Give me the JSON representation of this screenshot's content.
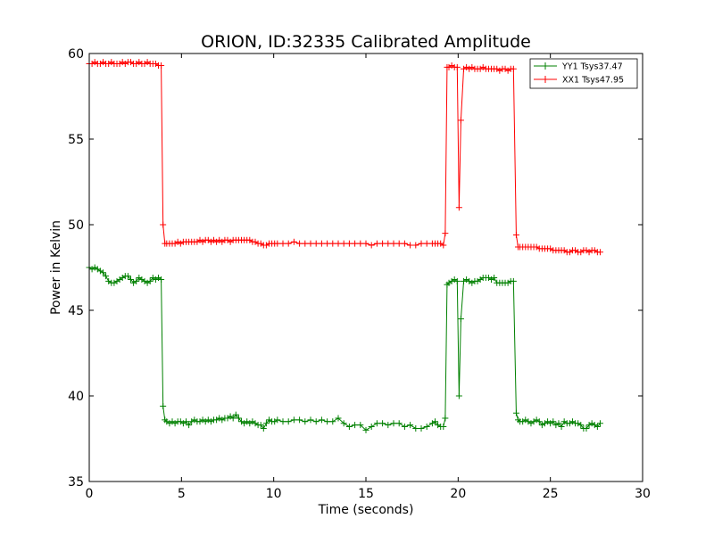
{
  "chart_data": {
    "type": "line",
    "title": "ORION, ID:32335 Calibrated Amplitude",
    "xlabel": "Time (seconds)",
    "ylabel": "Power in Kelvin",
    "xlim": [
      0,
      30
    ],
    "ylim": [
      35,
      60
    ],
    "xticks": [
      0,
      5,
      10,
      15,
      20,
      25,
      30
    ],
    "yticks": [
      35,
      40,
      45,
      50,
      55,
      60
    ],
    "grid": false,
    "legend_position": "upper-right",
    "marker": "+",
    "series": [
      {
        "name": "YY1 Tsys37.47",
        "color": "#008000",
        "x": [
          0,
          0.15,
          0.3,
          0.45,
          0.6,
          0.75,
          0.9,
          1.05,
          1.2,
          1.35,
          1.5,
          1.65,
          1.8,
          1.95,
          2.1,
          2.25,
          2.4,
          2.55,
          2.7,
          2.85,
          3.0,
          3.15,
          3.3,
          3.45,
          3.6,
          3.75,
          3.9,
          4.0,
          4.1,
          4.2,
          4.35,
          4.5,
          4.65,
          4.8,
          4.95,
          5.1,
          5.25,
          5.4,
          5.55,
          5.7,
          5.85,
          6.0,
          6.15,
          6.3,
          6.45,
          6.6,
          6.75,
          6.9,
          7.05,
          7.2,
          7.35,
          7.5,
          7.65,
          7.8,
          7.95,
          8.1,
          8.25,
          8.4,
          8.55,
          8.7,
          8.85,
          9.0,
          9.15,
          9.3,
          9.45,
          9.6,
          9.75,
          9.9,
          10.05,
          10.2,
          10.5,
          10.8,
          11.1,
          11.4,
          11.7,
          12.0,
          12.3,
          12.6,
          12.9,
          13.2,
          13.5,
          13.8,
          14.1,
          14.4,
          14.7,
          15.0,
          15.3,
          15.6,
          15.9,
          16.2,
          16.5,
          16.8,
          17.1,
          17.4,
          17.7,
          18.0,
          18.3,
          18.6,
          18.75,
          18.9,
          19.05,
          19.2,
          19.3,
          19.4,
          19.5,
          19.65,
          19.8,
          19.95,
          20.05,
          20.15,
          20.3,
          20.45,
          20.6,
          20.75,
          20.9,
          21.05,
          21.2,
          21.35,
          21.5,
          21.65,
          21.8,
          21.95,
          22.1,
          22.25,
          22.4,
          22.55,
          22.7,
          22.85,
          23.0,
          23.15,
          23.25,
          23.35,
          23.5,
          23.65,
          23.8,
          23.95,
          24.1,
          24.25,
          24.4,
          24.55,
          24.7,
          24.85,
          25.0,
          25.15,
          25.3,
          25.45,
          25.6,
          25.75,
          25.9,
          26.05,
          26.2,
          26.35,
          26.5,
          26.65,
          26.8,
          26.95,
          27.1,
          27.25,
          27.4,
          27.55,
          27.7
        ],
        "y": [
          47.5,
          47.4,
          47.5,
          47.4,
          47.3,
          47.2,
          47.0,
          46.7,
          46.6,
          46.6,
          46.7,
          46.8,
          46.9,
          47.0,
          47.0,
          46.8,
          46.6,
          46.7,
          46.9,
          46.8,
          46.7,
          46.6,
          46.7,
          46.9,
          46.8,
          46.9,
          46.8,
          39.4,
          38.6,
          38.5,
          38.4,
          38.5,
          38.4,
          38.5,
          38.5,
          38.4,
          38.5,
          38.3,
          38.5,
          38.6,
          38.5,
          38.5,
          38.6,
          38.5,
          38.6,
          38.5,
          38.6,
          38.6,
          38.7,
          38.6,
          38.7,
          38.7,
          38.8,
          38.7,
          38.9,
          38.7,
          38.5,
          38.4,
          38.5,
          38.4,
          38.5,
          38.4,
          38.3,
          38.3,
          38.1,
          38.4,
          38.6,
          38.5,
          38.5,
          38.6,
          38.5,
          38.5,
          38.6,
          38.6,
          38.5,
          38.6,
          38.5,
          38.6,
          38.5,
          38.5,
          38.7,
          38.4,
          38.2,
          38.3,
          38.3,
          38.0,
          38.2,
          38.4,
          38.4,
          38.3,
          38.4,
          38.4,
          38.2,
          38.3,
          38.1,
          38.1,
          38.2,
          38.4,
          38.5,
          38.3,
          38.2,
          38.2,
          38.7,
          46.5,
          46.6,
          46.7,
          46.8,
          46.7,
          40.0,
          44.5,
          46.7,
          46.8,
          46.7,
          46.6,
          46.7,
          46.7,
          46.8,
          46.9,
          46.9,
          46.9,
          46.8,
          46.9,
          46.6,
          46.6,
          46.6,
          46.6,
          46.6,
          46.7,
          46.7,
          39.0,
          38.6,
          38.5,
          38.5,
          38.6,
          38.5,
          38.4,
          38.5,
          38.6,
          38.5,
          38.3,
          38.4,
          38.5,
          38.4,
          38.5,
          38.3,
          38.4,
          38.2,
          38.5,
          38.4,
          38.4,
          38.5,
          38.4,
          38.4,
          38.3,
          38.1,
          38.1,
          38.3,
          38.4,
          38.3,
          38.2,
          38.4
        ]
      },
      {
        "name": "XX1 Tsys47.95",
        "color": "#ff0000",
        "x": [
          0,
          0.15,
          0.3,
          0.45,
          0.6,
          0.75,
          0.9,
          1.05,
          1.2,
          1.35,
          1.5,
          1.65,
          1.8,
          1.95,
          2.1,
          2.25,
          2.4,
          2.55,
          2.7,
          2.85,
          3.0,
          3.15,
          3.3,
          3.45,
          3.6,
          3.75,
          3.9,
          4.0,
          4.1,
          4.2,
          4.35,
          4.5,
          4.65,
          4.8,
          4.95,
          5.1,
          5.25,
          5.4,
          5.55,
          5.7,
          5.85,
          6.0,
          6.15,
          6.3,
          6.45,
          6.6,
          6.75,
          6.9,
          7.05,
          7.2,
          7.35,
          7.5,
          7.65,
          7.8,
          7.95,
          8.1,
          8.25,
          8.4,
          8.55,
          8.7,
          8.85,
          9.0,
          9.15,
          9.3,
          9.45,
          9.6,
          9.75,
          9.9,
          10.05,
          10.2,
          10.5,
          10.8,
          11.1,
          11.4,
          11.7,
          12.0,
          12.3,
          12.6,
          12.9,
          13.2,
          13.5,
          13.8,
          14.1,
          14.4,
          14.7,
          15.0,
          15.3,
          15.6,
          15.9,
          16.2,
          16.5,
          16.8,
          17.1,
          17.4,
          17.7,
          18.0,
          18.3,
          18.6,
          18.75,
          18.9,
          19.05,
          19.2,
          19.3,
          19.4,
          19.5,
          19.65,
          19.8,
          19.95,
          20.05,
          20.15,
          20.3,
          20.45,
          20.6,
          20.75,
          20.9,
          21.05,
          21.2,
          21.35,
          21.5,
          21.65,
          21.8,
          21.95,
          22.1,
          22.25,
          22.4,
          22.55,
          22.7,
          22.85,
          23.0,
          23.15,
          23.25,
          23.35,
          23.5,
          23.65,
          23.8,
          23.95,
          24.1,
          24.25,
          24.4,
          24.55,
          24.7,
          24.85,
          25.0,
          25.15,
          25.3,
          25.45,
          25.6,
          25.75,
          25.9,
          26.05,
          26.2,
          26.35,
          26.5,
          26.65,
          26.8,
          26.95,
          27.1,
          27.25,
          27.4,
          27.55,
          27.7
        ],
        "y": [
          59.4,
          59.4,
          59.5,
          59.4,
          59.4,
          59.5,
          59.4,
          59.4,
          59.5,
          59.4,
          59.4,
          59.4,
          59.5,
          59.4,
          59.5,
          59.5,
          59.4,
          59.4,
          59.5,
          59.4,
          59.4,
          59.5,
          59.4,
          59.4,
          59.4,
          59.3,
          59.3,
          50.0,
          48.9,
          48.9,
          48.9,
          48.9,
          48.9,
          49.0,
          48.9,
          49.0,
          49.0,
          49.0,
          49.0,
          49.0,
          49.0,
          49.1,
          49.0,
          49.1,
          49.1,
          49.0,
          49.1,
          49.0,
          49.1,
          49.0,
          49.1,
          49.1,
          49.0,
          49.1,
          49.1,
          49.1,
          49.1,
          49.1,
          49.1,
          49.1,
          49.0,
          49.0,
          48.9,
          48.9,
          48.8,
          48.8,
          48.9,
          48.9,
          48.9,
          48.9,
          48.9,
          48.9,
          49.0,
          48.9,
          48.9,
          48.9,
          48.9,
          48.9,
          48.9,
          48.9,
          48.9,
          48.9,
          48.9,
          48.9,
          48.9,
          48.9,
          48.8,
          48.9,
          48.9,
          48.9,
          48.9,
          48.9,
          48.9,
          48.8,
          48.8,
          48.9,
          48.9,
          48.9,
          48.9,
          48.9,
          48.9,
          48.8,
          49.5,
          59.2,
          59.2,
          59.3,
          59.2,
          59.2,
          51.0,
          56.1,
          59.1,
          59.2,
          59.1,
          59.2,
          59.1,
          59.1,
          59.1,
          59.2,
          59.1,
          59.1,
          59.1,
          59.1,
          59.1,
          59.0,
          59.1,
          59.1,
          59.0,
          59.1,
          59.1,
          49.4,
          48.7,
          48.7,
          48.7,
          48.7,
          48.7,
          48.7,
          48.7,
          48.7,
          48.6,
          48.6,
          48.6,
          48.6,
          48.6,
          48.5,
          48.5,
          48.5,
          48.5,
          48.5,
          48.4,
          48.4,
          48.5,
          48.5,
          48.4,
          48.4,
          48.5,
          48.5,
          48.4,
          48.5,
          48.5,
          48.4,
          48.4
        ]
      }
    ]
  }
}
